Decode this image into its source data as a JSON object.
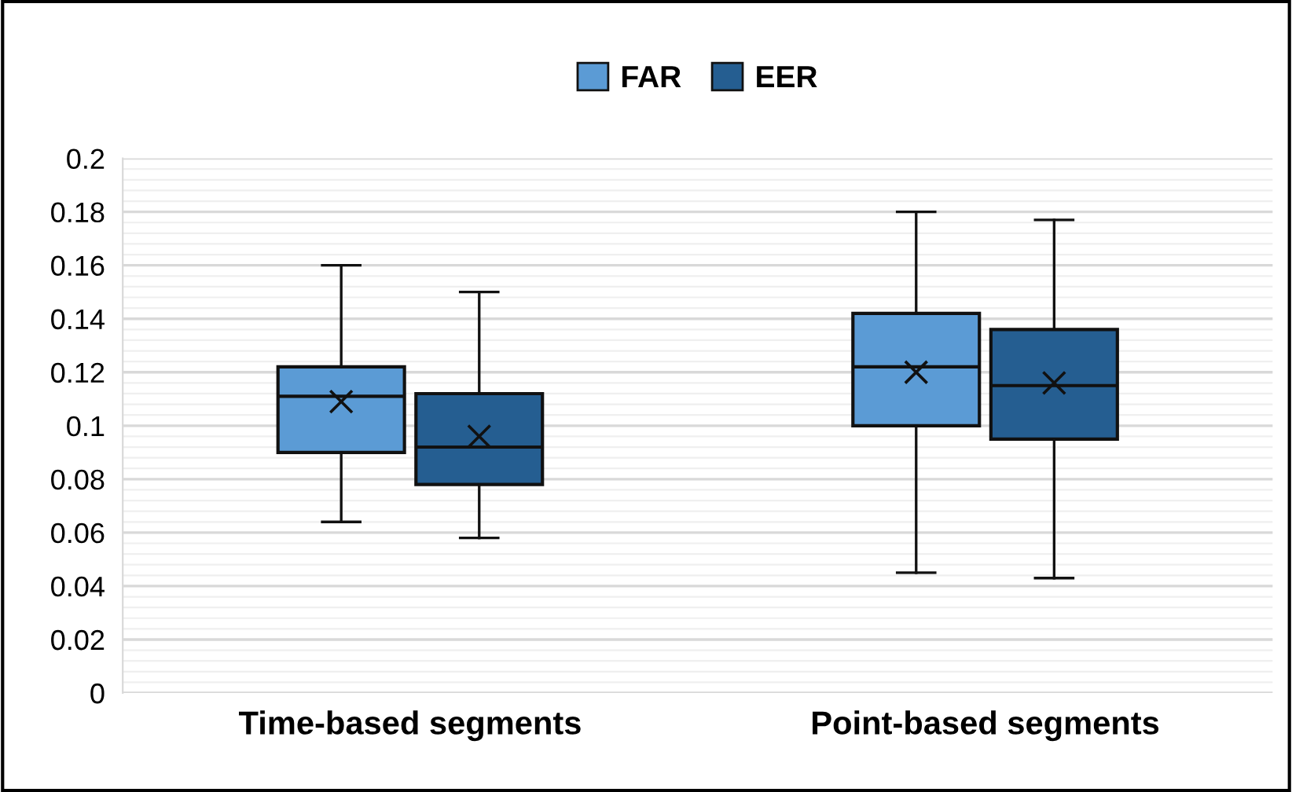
{
  "chart_data": {
    "type": "box",
    "categories": [
      "Time-based segments",
      "Point-based segments"
    ],
    "series": [
      {
        "name": "FAR",
        "color": "#5b9bd5",
        "boxes": [
          {
            "low": 0.064,
            "q1": 0.09,
            "median": 0.111,
            "q3": 0.122,
            "high": 0.16,
            "mean": 0.109
          },
          {
            "low": 0.045,
            "q1": 0.1,
            "median": 0.122,
            "q3": 0.142,
            "high": 0.18,
            "mean": 0.12
          }
        ]
      },
      {
        "name": "EER",
        "color": "#255e91",
        "boxes": [
          {
            "low": 0.058,
            "q1": 0.078,
            "median": 0.092,
            "q3": 0.112,
            "high": 0.15,
            "mean": 0.096
          },
          {
            "low": 0.043,
            "q1": 0.095,
            "median": 0.115,
            "q3": 0.136,
            "high": 0.177,
            "mean": 0.116
          }
        ]
      }
    ],
    "ylim": [
      0,
      0.2
    ],
    "yticks": [
      0,
      0.02,
      0.04,
      0.06,
      0.08,
      0.1,
      0.12,
      0.14,
      0.16,
      0.18,
      0.2
    ],
    "grid": "y",
    "legend": "top"
  }
}
